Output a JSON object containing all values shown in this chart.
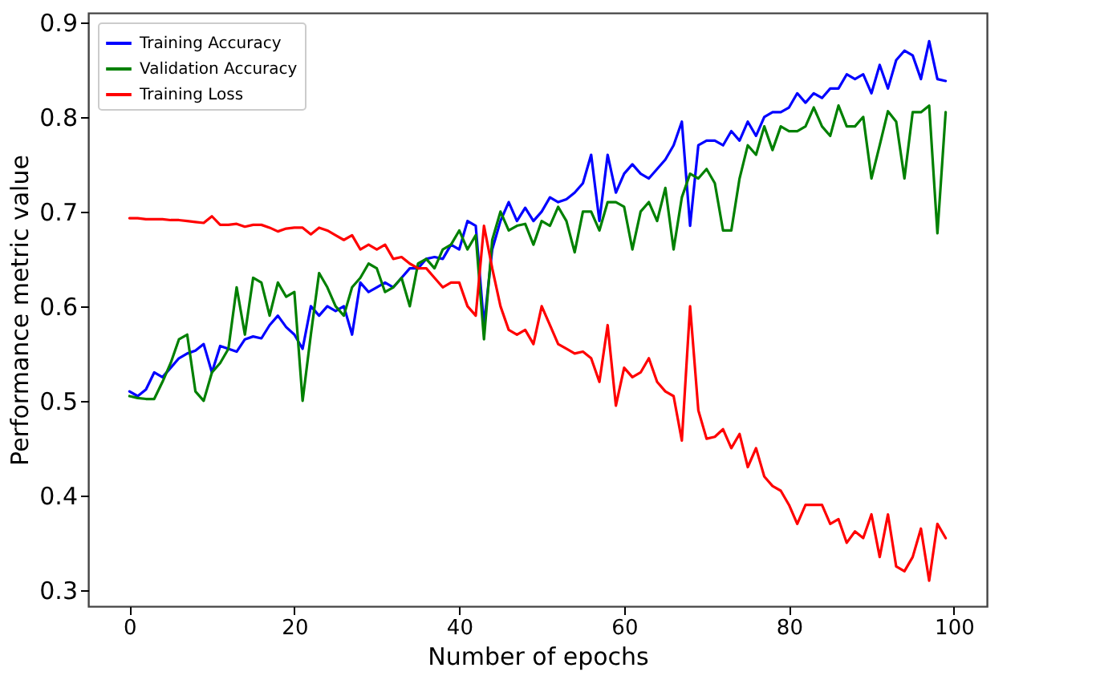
{
  "chart_data": {
    "type": "line",
    "xlabel": "Number of epochs",
    "ylabel": "Performance metric value",
    "x": [
      0,
      1,
      2,
      3,
      4,
      5,
      6,
      7,
      8,
      9,
      10,
      11,
      12,
      13,
      14,
      15,
      16,
      17,
      18,
      19,
      20,
      21,
      22,
      23,
      24,
      25,
      26,
      27,
      28,
      29,
      30,
      31,
      32,
      33,
      34,
      35,
      36,
      37,
      38,
      39,
      40,
      41,
      42,
      43,
      44,
      45,
      46,
      47,
      48,
      49,
      50,
      51,
      52,
      53,
      54,
      55,
      56,
      57,
      58,
      59,
      60,
      61,
      62,
      63,
      64,
      65,
      66,
      67,
      68,
      69,
      70,
      71,
      72,
      73,
      74,
      75,
      76,
      77,
      78,
      79,
      80,
      81,
      82,
      83,
      84,
      85,
      86,
      87,
      88,
      89,
      90,
      91,
      92,
      93,
      94,
      95,
      96,
      97,
      98,
      99
    ],
    "series": [
      {
        "name": "Training Accuracy",
        "color": "#0000ff",
        "values": [
          0.51,
          0.505,
          0.512,
          0.53,
          0.525,
          0.535,
          0.545,
          0.55,
          0.553,
          0.56,
          0.53,
          0.558,
          0.555,
          0.552,
          0.565,
          0.568,
          0.566,
          0.58,
          0.59,
          0.578,
          0.57,
          0.555,
          0.6,
          0.59,
          0.6,
          0.595,
          0.6,
          0.57,
          0.625,
          0.615,
          0.62,
          0.625,
          0.62,
          0.63,
          0.64,
          0.64,
          0.65,
          0.652,
          0.65,
          0.665,
          0.66,
          0.69,
          0.685,
          0.58,
          0.66,
          0.69,
          0.71,
          0.69,
          0.704,
          0.69,
          0.7,
          0.715,
          0.71,
          0.713,
          0.72,
          0.73,
          0.76,
          0.69,
          0.76,
          0.72,
          0.74,
          0.75,
          0.74,
          0.735,
          0.745,
          0.755,
          0.77,
          0.795,
          0.685,
          0.77,
          0.775,
          0.775,
          0.77,
          0.785,
          0.775,
          0.795,
          0.78,
          0.8,
          0.805,
          0.805,
          0.81,
          0.825,
          0.815,
          0.825,
          0.82,
          0.83,
          0.83,
          0.845,
          0.84,
          0.845,
          0.825,
          0.855,
          0.83,
          0.86,
          0.87,
          0.865,
          0.84,
          0.88,
          0.84,
          0.838
        ]
      },
      {
        "name": "Validation Accuracy",
        "color": "#008000",
        "values": [
          0.505,
          0.503,
          0.502,
          0.502,
          0.52,
          0.54,
          0.565,
          0.57,
          0.51,
          0.5,
          0.53,
          0.54,
          0.555,
          0.62,
          0.57,
          0.63,
          0.625,
          0.59,
          0.625,
          0.61,
          0.615,
          0.5,
          0.57,
          0.635,
          0.62,
          0.6,
          0.59,
          0.62,
          0.63,
          0.645,
          0.64,
          0.615,
          0.62,
          0.63,
          0.6,
          0.645,
          0.65,
          0.64,
          0.66,
          0.665,
          0.68,
          0.66,
          0.675,
          0.565,
          0.67,
          0.7,
          0.68,
          0.685,
          0.687,
          0.665,
          0.69,
          0.685,
          0.705,
          0.69,
          0.657,
          0.7,
          0.7,
          0.68,
          0.71,
          0.71,
          0.705,
          0.66,
          0.7,
          0.71,
          0.69,
          0.725,
          0.66,
          0.715,
          0.74,
          0.735,
          0.745,
          0.73,
          0.68,
          0.68,
          0.735,
          0.77,
          0.76,
          0.79,
          0.765,
          0.79,
          0.785,
          0.785,
          0.79,
          0.81,
          0.79,
          0.78,
          0.812,
          0.79,
          0.79,
          0.8,
          0.735,
          0.77,
          0.806,
          0.795,
          0.735,
          0.805,
          0.805,
          0.812,
          0.677,
          0.805
        ]
      },
      {
        "name": "Training Loss",
        "color": "#ff0000",
        "values": [
          0.693,
          0.693,
          0.692,
          0.692,
          0.692,
          0.691,
          0.691,
          0.69,
          0.689,
          0.688,
          0.695,
          0.686,
          0.686,
          0.687,
          0.684,
          0.686,
          0.686,
          0.683,
          0.679,
          0.682,
          0.683,
          0.683,
          0.676,
          0.683,
          0.68,
          0.675,
          0.67,
          0.675,
          0.66,
          0.665,
          0.66,
          0.665,
          0.65,
          0.652,
          0.645,
          0.64,
          0.64,
          0.63,
          0.62,
          0.625,
          0.625,
          0.6,
          0.59,
          0.685,
          0.64,
          0.6,
          0.575,
          0.57,
          0.575,
          0.56,
          0.6,
          0.58,
          0.56,
          0.555,
          0.55,
          0.552,
          0.545,
          0.52,
          0.58,
          0.495,
          0.535,
          0.525,
          0.53,
          0.545,
          0.52,
          0.51,
          0.505,
          0.458,
          0.6,
          0.49,
          0.46,
          0.462,
          0.47,
          0.45,
          0.465,
          0.43,
          0.45,
          0.42,
          0.41,
          0.405,
          0.39,
          0.37,
          0.39,
          0.39,
          0.39,
          0.37,
          0.375,
          0.35,
          0.362,
          0.355,
          0.38,
          0.335,
          0.38,
          0.325,
          0.32,
          0.335,
          0.365,
          0.31,
          0.37,
          0.355
        ]
      }
    ],
    "xlim": [
      -5,
      104
    ],
    "ylim": [
      0.283,
      0.91
    ],
    "xticks": [
      0,
      20,
      40,
      60,
      80,
      100
    ],
    "yticks": [
      0.3,
      0.4,
      0.5,
      0.6,
      0.7,
      0.8,
      0.9
    ],
    "legend": "top left",
    "grid": false,
    "marker": "none",
    "line_style": "solid"
  }
}
